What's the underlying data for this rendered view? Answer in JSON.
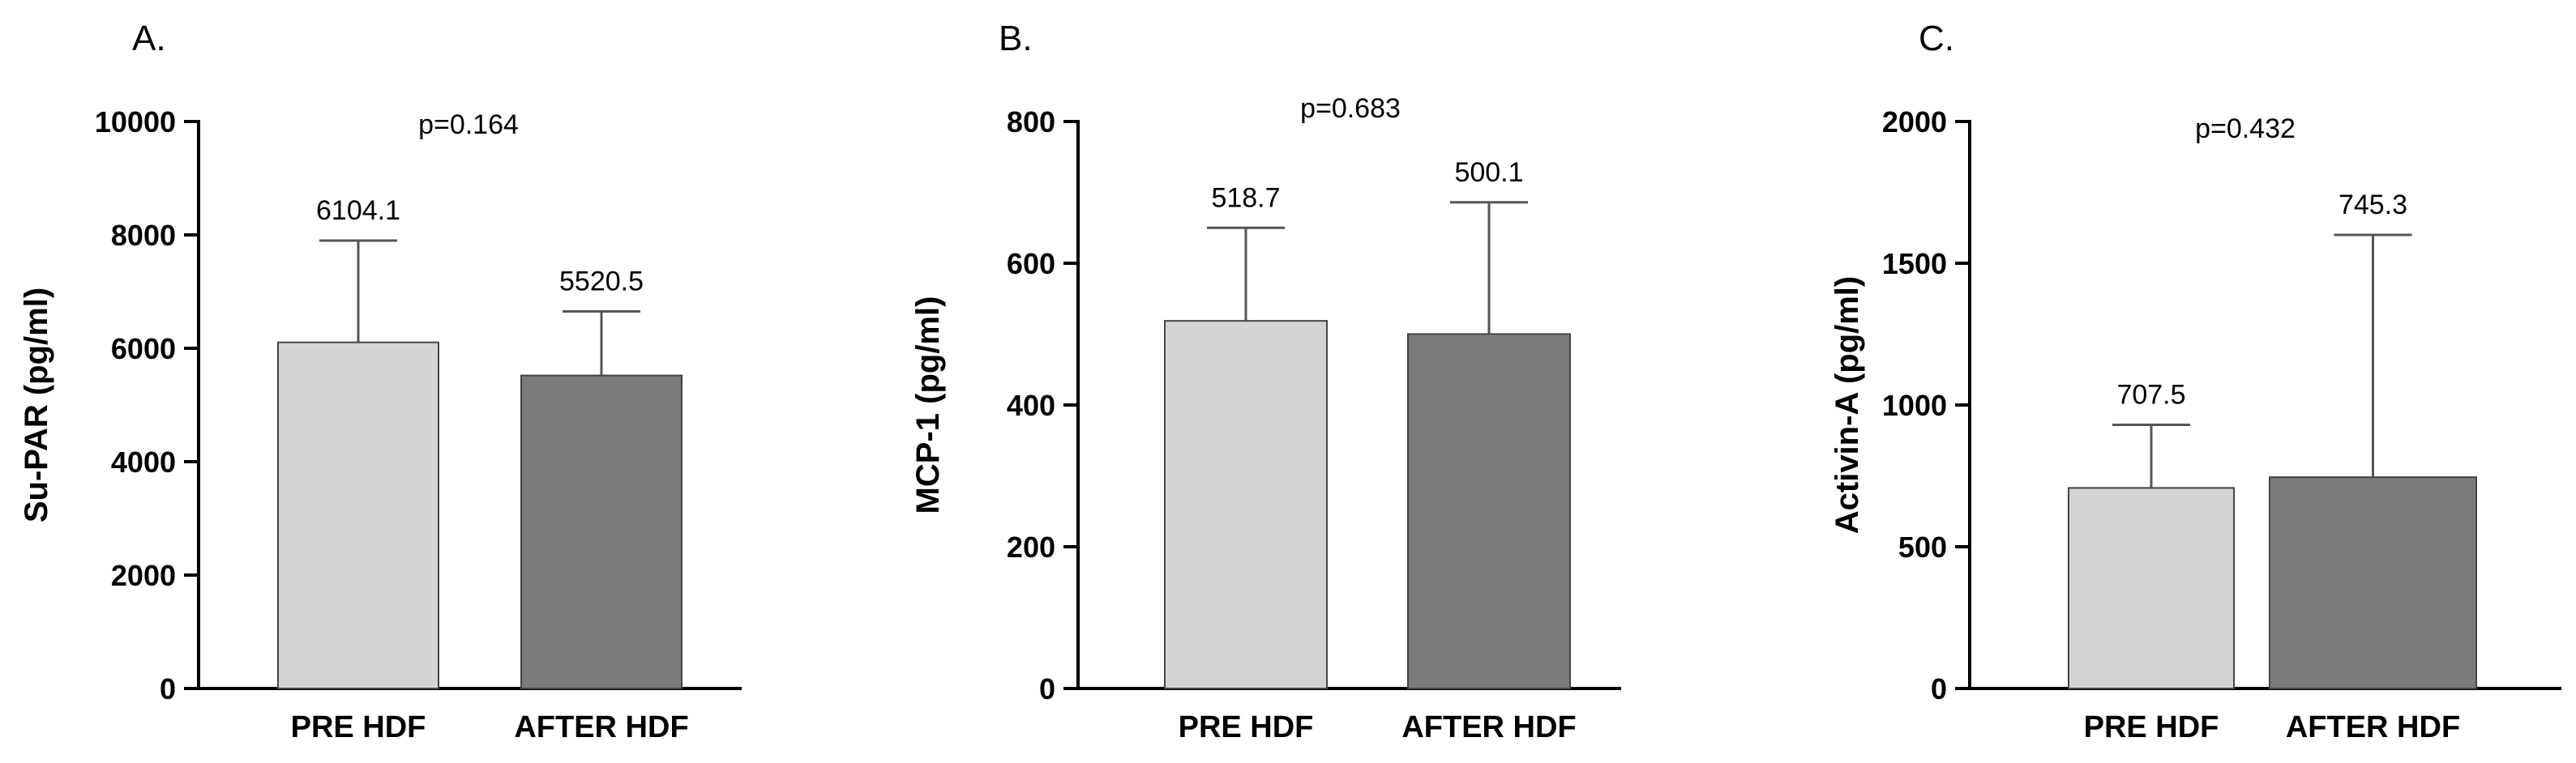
{
  "chart_data": [
    {
      "type": "bar",
      "panel": "A.",
      "ylabel": "Su-PAR (pg/ml)",
      "ylim": [
        0,
        10000
      ],
      "yticks": [
        0,
        2000,
        4000,
        6000,
        8000,
        10000
      ],
      "categories": [
        "PRE HDF",
        "AFTER HDF"
      ],
      "values": [
        6104.1,
        5520.5
      ],
      "value_labels": [
        "6104.1",
        "5520.5"
      ],
      "error_upper": [
        7900,
        6650
      ],
      "bar_colors": [
        "#d4d4d4",
        "#7b7b7b"
      ],
      "annotation": "p=0.164",
      "grid": false
    },
    {
      "type": "bar",
      "panel": "B.",
      "ylabel": "MCP-1 (pg/ml)",
      "ylim": [
        0,
        800
      ],
      "yticks": [
        0,
        200,
        400,
        600,
        800
      ],
      "categories": [
        "PRE HDF",
        "AFTER HDF"
      ],
      "values": [
        518.7,
        500.1
      ],
      "value_labels": [
        "518.7",
        "500.1"
      ],
      "error_upper": [
        650,
        686
      ],
      "bar_colors": [
        "#d4d4d4",
        "#7b7b7b"
      ],
      "annotation": "p=0.683",
      "grid": false
    },
    {
      "type": "bar",
      "panel": "C.",
      "ylabel": "Activin-A (pg/ml)",
      "ylim": [
        0,
        2000
      ],
      "yticks": [
        0,
        500,
        1000,
        1500,
        2000
      ],
      "categories": [
        "PRE HDF",
        "AFTER HDF"
      ],
      "values": [
        707.5,
        745.3
      ],
      "value_labels": [
        "707.5",
        "745.3"
      ],
      "error_upper": [
        930,
        1600
      ],
      "bar_colors": [
        "#d4d4d4",
        "#7b7b7b"
      ],
      "annotation": "p=0.432",
      "grid": false
    }
  ]
}
